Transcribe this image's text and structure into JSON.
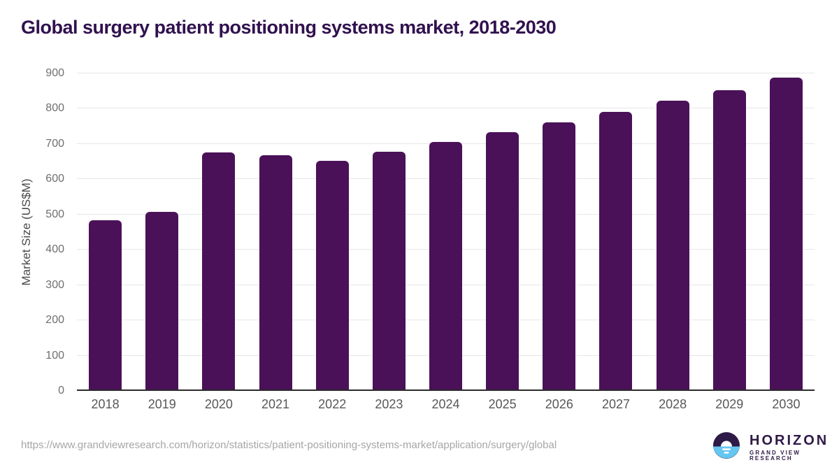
{
  "title": "Global surgery patient positioning systems market, 2018-2030",
  "chart_data": {
    "type": "bar",
    "categories": [
      "2018",
      "2019",
      "2020",
      "2021",
      "2022",
      "2023",
      "2024",
      "2025",
      "2026",
      "2027",
      "2028",
      "2029",
      "2030"
    ],
    "values": [
      483,
      507,
      676,
      668,
      653,
      678,
      705,
      734,
      761,
      791,
      823,
      853,
      888
    ],
    "title": "Global surgery patient positioning systems market, 2018-2030",
    "xlabel": "",
    "ylabel": "Market Size (US$M)",
    "ylim": [
      0,
      900
    ],
    "yticks": [
      0,
      100,
      200,
      300,
      400,
      500,
      600,
      700,
      800,
      900
    ],
    "grid": true,
    "legend": "none",
    "bar_color": "#4a1158"
  },
  "footer": {
    "source_url": "https://www.grandviewresearch.com/horizon/statistics/patient-positioning-systems-market/application/surgery/global",
    "logo": {
      "name": "HORIZON",
      "subtitle": "GRAND VIEW RESEARCH"
    }
  },
  "colors": {
    "title": "#31114f",
    "bar": "#4a1158",
    "gridline": "#e7e7e7",
    "axis_line": "#2b2b2b",
    "tick_label": "#6f6f6f",
    "x_label": "#585858",
    "url_text": "#a6a6a6",
    "logo_purple": "#2e1a47",
    "logo_blue": "#65c6f0"
  }
}
